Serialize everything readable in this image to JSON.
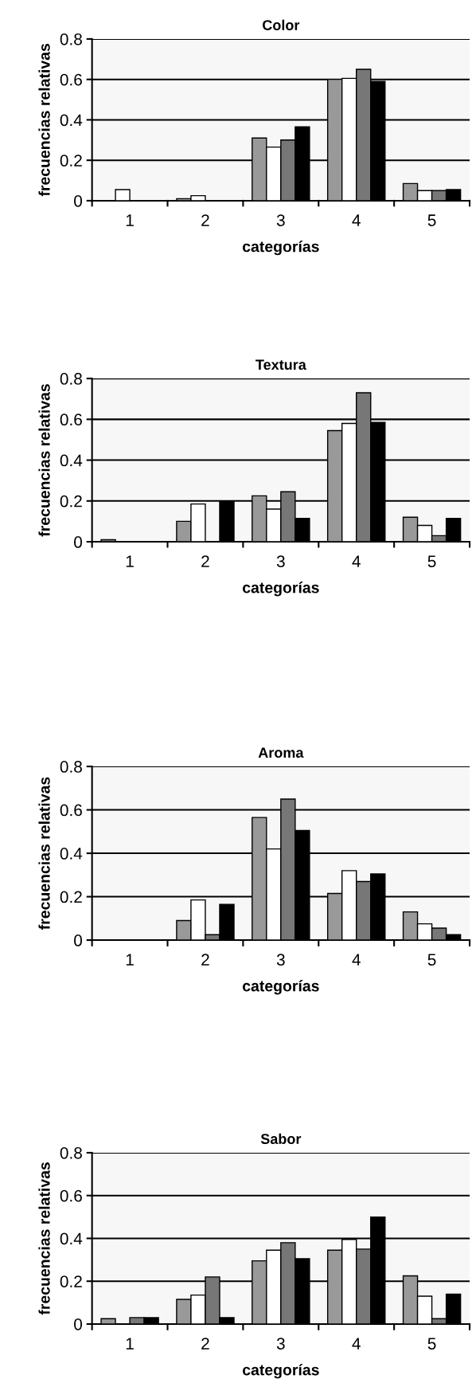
{
  "chart_data": [
    {
      "type": "bar",
      "title": "Color",
      "xlabel": "categorías",
      "ylabel": "frecuencias relativas",
      "categories": [
        "1",
        "2",
        "3",
        "4",
        "5"
      ],
      "ylim": [
        0,
        0.8
      ],
      "yticks": [
        0,
        0.2,
        0.4,
        0.6,
        0.8
      ],
      "grid": "y",
      "series": [
        {
          "color": "#999999",
          "values": [
            null,
            0.01,
            0.31,
            0.6,
            0.085
          ]
        },
        {
          "color": "#ffffff",
          "values": [
            0.055,
            0.025,
            0.265,
            0.605,
            0.05
          ]
        },
        {
          "color": "#777777",
          "values": [
            null,
            null,
            0.3,
            0.65,
            0.05
          ]
        },
        {
          "color": "#000000",
          "values": [
            null,
            null,
            0.365,
            0.59,
            0.055
          ]
        }
      ]
    },
    {
      "type": "bar",
      "title": "Textura",
      "xlabel": "categorías",
      "ylabel": "frecuencias relativas",
      "categories": [
        "1",
        "2",
        "3",
        "4",
        "5"
      ],
      "ylim": [
        0,
        0.8
      ],
      "yticks": [
        0,
        0.2,
        0.4,
        0.6,
        0.8
      ],
      "grid": "y",
      "series": [
        {
          "color": "#999999",
          "values": [
            0.01,
            0.1,
            0.225,
            0.545,
            0.12
          ]
        },
        {
          "color": "#ffffff",
          "values": [
            null,
            0.185,
            0.16,
            0.58,
            0.08
          ]
        },
        {
          "color": "#777777",
          "values": [
            null,
            null,
            0.245,
            0.73,
            0.03
          ]
        },
        {
          "color": "#000000",
          "values": [
            null,
            0.2,
            0.115,
            0.585,
            0.115
          ]
        }
      ]
    },
    {
      "type": "bar",
      "title": "Aroma",
      "xlabel": "categorías",
      "ylabel": "frecuencias relativas",
      "categories": [
        "1",
        "2",
        "3",
        "4",
        "5"
      ],
      "ylim": [
        0,
        0.8
      ],
      "yticks": [
        0,
        0.2,
        0.4,
        0.6,
        0.8
      ],
      "grid": "y",
      "series": [
        {
          "color": "#999999",
          "values": [
            null,
            0.09,
            0.565,
            0.215,
            0.13
          ]
        },
        {
          "color": "#ffffff",
          "values": [
            null,
            0.185,
            0.42,
            0.32,
            0.075
          ]
        },
        {
          "color": "#777777",
          "values": [
            null,
            0.025,
            0.65,
            0.27,
            0.055
          ]
        },
        {
          "color": "#000000",
          "values": [
            null,
            0.165,
            0.505,
            0.305,
            0.025
          ]
        }
      ]
    },
    {
      "type": "bar",
      "title": "Sabor",
      "xlabel": "categorías",
      "ylabel": "frecuencias relativas",
      "categories": [
        "1",
        "2",
        "3",
        "4",
        "5"
      ],
      "ylim": [
        0,
        0.8
      ],
      "yticks": [
        0,
        0.2,
        0.4,
        0.6,
        0.8
      ],
      "grid": "y",
      "series": [
        {
          "color": "#999999",
          "values": [
            0.025,
            0.115,
            0.295,
            0.345,
            0.225
          ]
        },
        {
          "color": "#ffffff",
          "values": [
            null,
            0.135,
            0.345,
            0.395,
            0.13
          ]
        },
        {
          "color": "#777777",
          "values": [
            0.03,
            0.22,
            0.38,
            0.35,
            0.025
          ]
        },
        {
          "color": "#000000",
          "values": [
            0.03,
            0.03,
            0.305,
            0.5,
            0.14
          ]
        }
      ]
    }
  ]
}
